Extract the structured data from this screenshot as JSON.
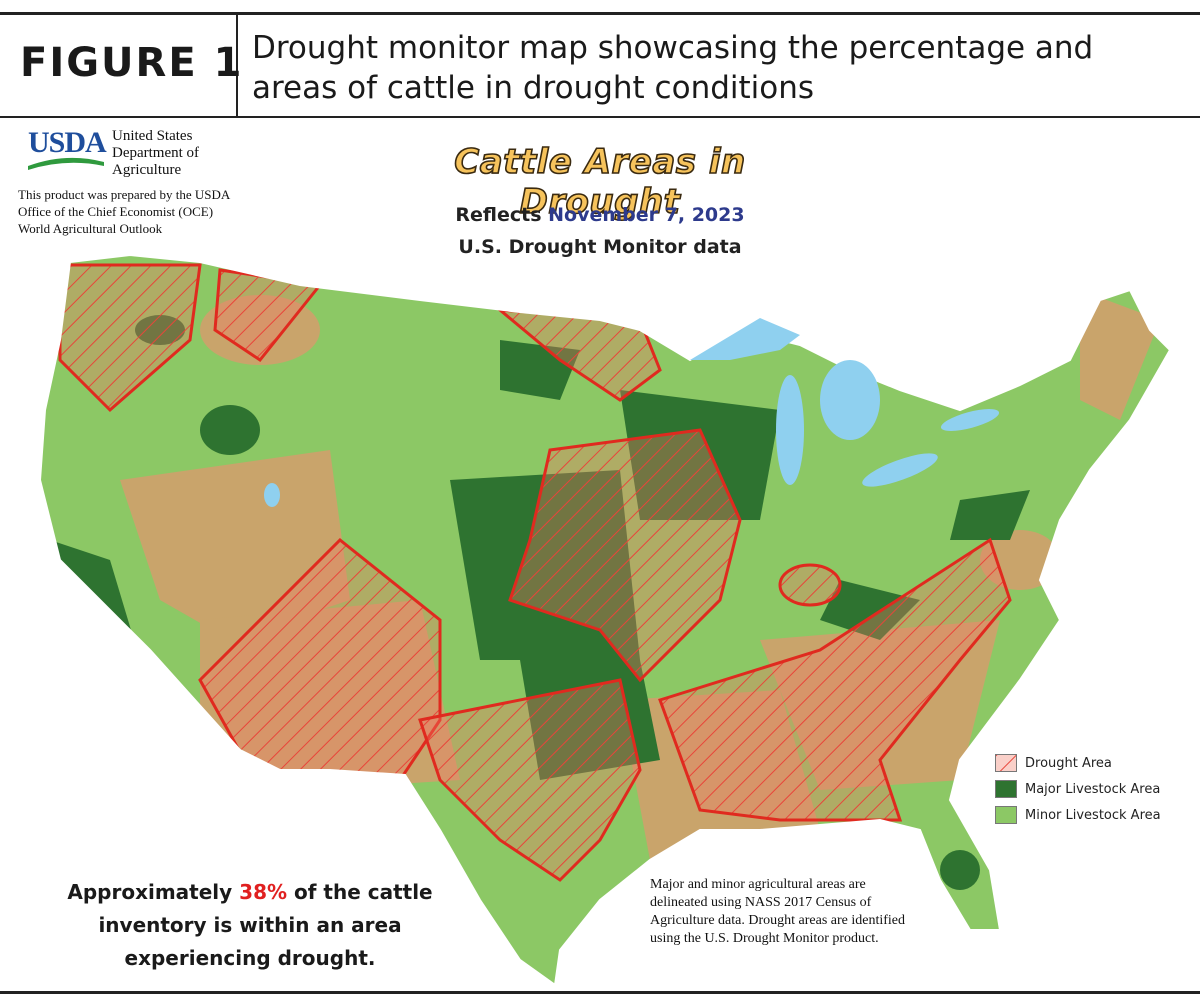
{
  "header": {
    "figure_label": "FIGURE 1",
    "title": "Drought monitor map showcasing the percentage and areas of cattle in drought conditions"
  },
  "logo": {
    "mark": "USDA",
    "agency": "United States Department of Agriculture",
    "credit": "This product was prepared by the USDA Office of the Chief Economist (OCE) World Agricultural Outlook"
  },
  "map": {
    "title": "Cattle Areas in Drought",
    "reflects": "Reflects",
    "date": "November 7, 2023",
    "source": "U.S. Drought Monitor data",
    "legend": [
      "Drought Area",
      "Major Livestock Area",
      "Minor Livestock Area"
    ],
    "summary": {
      "prefix": "Approximately",
      "percent": "38%",
      "suffix": "of the cattle inventory is within an area experiencing drought."
    },
    "note": "Major and minor agricultural areas are delineated using NASS 2017 Census of Agriculture data. Drought areas are identified using the U.S. Drought Monitor product."
  }
}
